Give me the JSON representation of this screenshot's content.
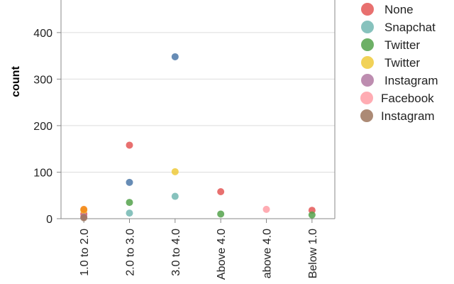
{
  "chart_data": {
    "type": "scatter",
    "title": "",
    "xlabel": "",
    "ylabel": "count",
    "ylim": [
      0,
      400
    ],
    "yticks": [
      0,
      100,
      200,
      300,
      400
    ],
    "grid": true,
    "legend_placement": "right",
    "categories": [
      "1.0 to 2.0",
      "2.0 to 3.0",
      "3.0 to 4.0",
      "Above 4.0",
      "above 4.0",
      "Below 1.0"
    ],
    "series": [
      {
        "name": "None",
        "color": "#e45756",
        "values": [
          10,
          158,
          null,
          58,
          null,
          18
        ]
      },
      {
        "name": "Snapchat",
        "color": "#72b7b2",
        "values": [
          null,
          12,
          48,
          null,
          null,
          null
        ]
      },
      {
        "name": "Twitter",
        "color": "#54a24b",
        "values": [
          null,
          35,
          null,
          10,
          null,
          8
        ]
      },
      {
        "name": "Twitter",
        "color": "#eeca3b",
        "values": [
          18,
          null,
          101,
          null,
          null,
          null
        ]
      },
      {
        "name": "Instagram",
        "color": "#b279a2",
        "values": [
          4,
          null,
          null,
          null,
          null,
          null
        ]
      },
      {
        "name": "Facebook",
        "color": "#ff9da6",
        "values": [
          null,
          null,
          null,
          null,
          20,
          null
        ]
      },
      {
        "name": "Instagram",
        "color": "#9d755d",
        "values": [
          2,
          null,
          null,
          null,
          null,
          null
        ]
      },
      {
        "name": "",
        "color": "#4c78a8",
        "values": [
          null,
          78,
          348,
          null,
          null,
          null
        ]
      },
      {
        "name": "",
        "color": "#f58518",
        "values": [
          20,
          null,
          null,
          null,
          null,
          null
        ]
      }
    ],
    "legend": [
      {
        "label": "None",
        "color": "#e45756"
      },
      {
        "label": "Snapchat",
        "color": "#72b7b2"
      },
      {
        "label": "Twitter",
        "color": "#54a24b"
      },
      {
        "label": "Twitter",
        "color": "#eeca3b"
      },
      {
        "label": "Instagram",
        "color": "#b279a2"
      },
      {
        "label": "Facebook",
        "color": "#ff9da6"
      },
      {
        "label": "Instagram",
        "color": "#9d755d"
      }
    ]
  }
}
